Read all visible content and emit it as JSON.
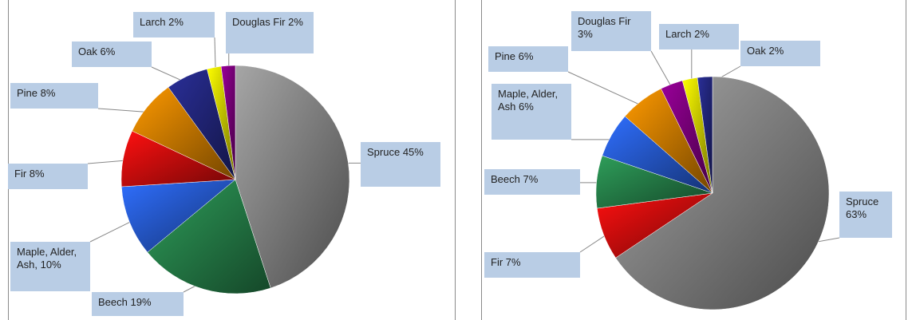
{
  "chart_data": [
    {
      "type": "pie",
      "categories": [
        "Spruce",
        "Beech",
        "Maple, Alder, Ash,",
        "Fir",
        "Pine",
        "Oak",
        "Larch",
        "Douglas Fir"
      ],
      "values": [
        45,
        19,
        10,
        8,
        8,
        6,
        2,
        2
      ],
      "value_labels": [
        "45%",
        "19%",
        "10%",
        "8%",
        "8%",
        "6%",
        "2%",
        "2%"
      ],
      "colors": [
        "#a6a6a6",
        "#2e9e5a",
        "#2f6fff",
        "#ff1010",
        "#ff9a00",
        "#2a2f99",
        "#ffff00",
        "#9a009a"
      ]
    },
    {
      "type": "pie",
      "categories": [
        "Spruce",
        "Fir",
        "Beech",
        "Maple, Alder, Ash",
        "Pine",
        "Douglas Fir",
        "Larch",
        "Oak"
      ],
      "values": [
        63,
        7,
        7,
        6,
        6,
        3,
        2,
        2
      ],
      "value_labels": [
        "63%",
        "7%",
        "7%",
        "6%",
        "6%",
        "3%",
        "2%",
        "2%"
      ],
      "colors": [
        "#a6a6a6",
        "#ff1010",
        "#2e9e5a",
        "#2f6fff",
        "#ff9a00",
        "#9a009a",
        "#ffff00",
        "#2a2f99"
      ]
    }
  ]
}
